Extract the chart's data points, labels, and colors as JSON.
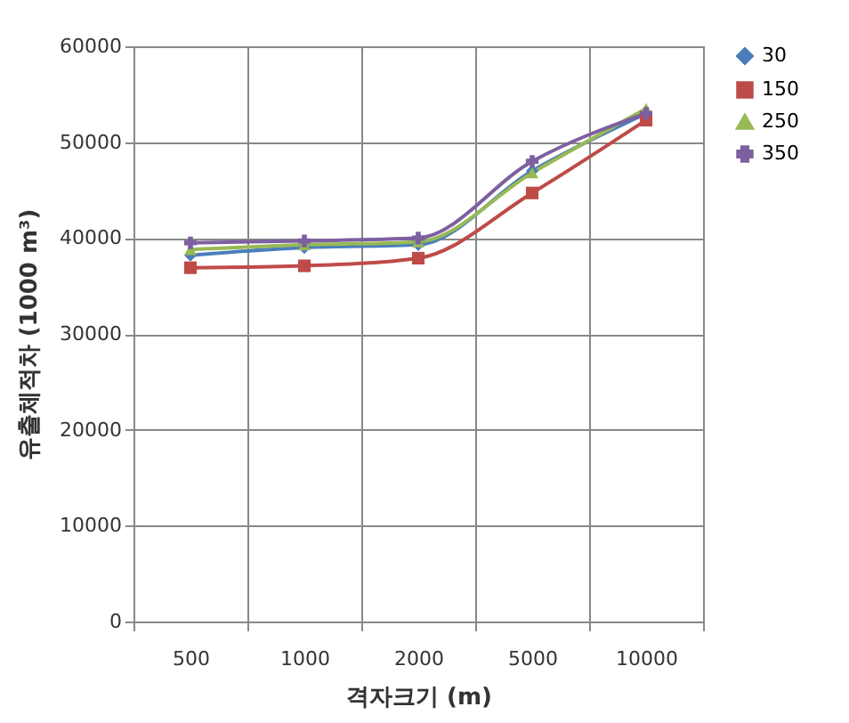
{
  "chart_data": {
    "type": "line",
    "xlabel": "격자크기 (m)",
    "ylabel": "유출체적차 (1000 m³)",
    "categories": [
      "500",
      "1000",
      "2000",
      "5000",
      "10000"
    ],
    "series": [
      {
        "name": "30",
        "color": "#4a7ebb",
        "marker": "diamond",
        "values": [
          38200,
          39000,
          39300,
          47000,
          53000
        ]
      },
      {
        "name": "150",
        "color": "#be4b48",
        "marker": "square",
        "values": [
          36900,
          37100,
          37900,
          44700,
          52300
        ]
      },
      {
        "name": "250",
        "color": "#98b954",
        "marker": "triangle",
        "values": [
          38800,
          39300,
          39600,
          46800,
          53500
        ]
      },
      {
        "name": "350",
        "color": "#7d60a0",
        "marker": "cross",
        "values": [
          39500,
          39700,
          40000,
          48000,
          53000
        ]
      }
    ],
    "ylim": [
      0,
      60000
    ],
    "yticks": [
      0,
      10000,
      20000,
      30000,
      40000,
      50000,
      60000
    ],
    "grid": true,
    "legend": "right",
    "line_style": "solid"
  }
}
